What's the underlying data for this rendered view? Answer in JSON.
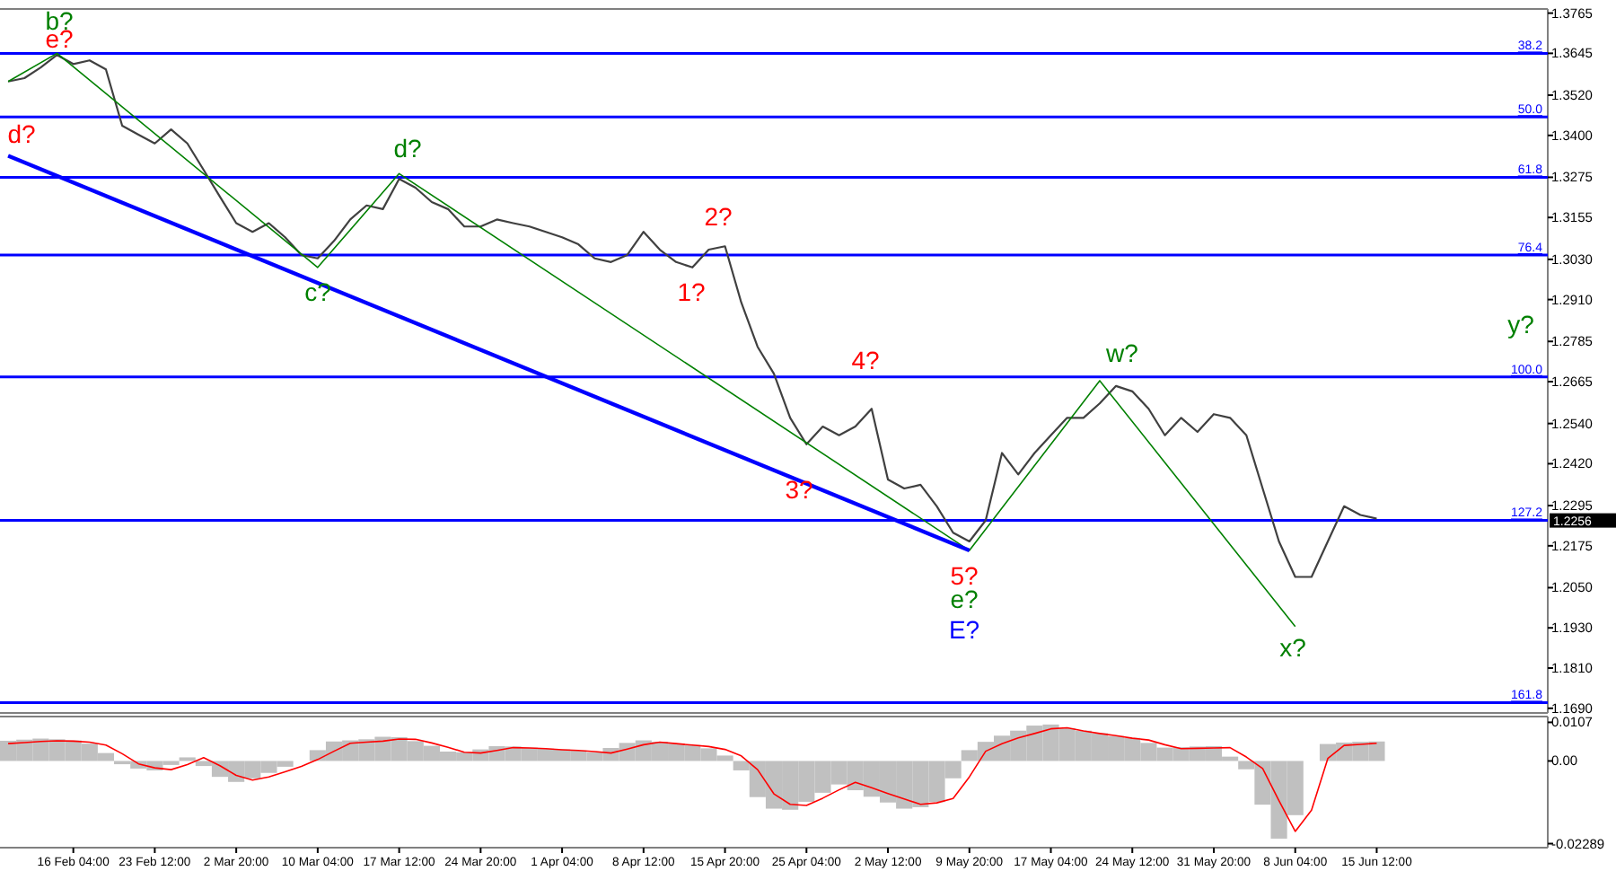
{
  "chart_data": [
    {
      "type": "line",
      "ylim": [
        1.1676,
        1.3772
      ],
      "tick_labels": "y",
      "categories": [
        null,
        null,
        null,
        null,
        null,
        null,
        null,
        null,
        null,
        null,
        null,
        null,
        null,
        null,
        null,
        null,
        null,
        null,
        null,
        null,
        null,
        null,
        null,
        null,
        null,
        null,
        null,
        null,
        null,
        null,
        null,
        null,
        null,
        null,
        null,
        null,
        null,
        null,
        null,
        null,
        null,
        null,
        null,
        null,
        null,
        null,
        null,
        null,
        null,
        null,
        null,
        null,
        null,
        null,
        null,
        null,
        null,
        null,
        null,
        null,
        null,
        null,
        null,
        null,
        null,
        null,
        null,
        null,
        null,
        null,
        null,
        null,
        null,
        null,
        null,
        null,
        null,
        null,
        null,
        null,
        null,
        null,
        null,
        null,
        null,
        null,
        null,
        null,
        null,
        null,
        null,
        null,
        null,
        null,
        null
      ],
      "yticks": [
        1.3765,
        1.3645,
        {
          "value": 1.352,
          "label": "1.3520"
        },
        {
          "value": 1.34,
          "label": "1.3400"
        },
        1.3275,
        1.3155,
        {
          "value": 1.303,
          "label": "1.3030"
        },
        {
          "value": 1.291,
          "label": "1.2910"
        },
        1.2785,
        1.2665,
        {
          "value": 1.254,
          "label": "1.2540"
        },
        {
          "value": 1.242,
          "label": "1.2420"
        },
        1.2295,
        1.2175,
        {
          "value": 1.205,
          "label": "1.2050"
        },
        {
          "value": 1.193,
          "label": "1.1930"
        },
        {
          "value": 1.181,
          "label": "1.1810"
        },
        {
          "value": 1.169,
          "label": "1.1690"
        }
      ],
      "series": [
        {
          "color": "#404040",
          "values": [
            1.3561,
            1.3571,
            1.3603,
            1.364,
            1.3613,
            1.3624,
            1.3597,
            1.3429,
            1.3402,
            1.3376,
            1.3418,
            1.3376,
            1.3297,
            1.3217,
            1.3138,
            1.3112,
            1.3138,
            1.3096,
            1.3043,
            1.3033,
            1.3085,
            1.3149,
            1.3191,
            1.318,
            1.327,
            1.3244,
            1.3201,
            1.318,
            1.3128,
            1.3128,
            1.3149,
            1.3138,
            1.3128,
            1.3112,
            1.3096,
            1.3075,
            1.3033,
            1.3022,
            1.3043,
            1.3112,
            1.3059,
            1.3022,
            1.3006,
            1.3059,
            1.3069,
            1.2901,
            1.2769,
            1.2689,
            1.2557,
            1.2478,
            1.2531,
            1.2505,
            1.2531,
            1.2584,
            1.2373,
            1.2346,
            1.2357,
            1.2293,
            1.2214,
            1.2188,
            1.2251,
            1.2452,
            1.2388,
            1.2452,
            1.2505,
            1.2557,
            1.2557,
            1.26,
            1.2652,
            1.2636,
            1.2584,
            1.2505,
            1.2557,
            1.2515,
            1.2568,
            1.2557,
            1.2505,
            1.2346,
            1.2188,
            1.2082,
            1.2082,
            1.2188,
            1.2293,
            1.2267,
            1.2256,
            null,
            null,
            null,
            null,
            null,
            null,
            null,
            null,
            null,
            null
          ]
        },
        {
          "color": "#008000",
          "values": [
            1.3561,
            null,
            null,
            1.3645,
            null,
            null,
            null,
            null,
            null,
            null,
            null,
            null,
            null,
            null,
            null,
            null,
            null,
            null,
            null,
            1.3006,
            null,
            null,
            null,
            null,
            1.3286,
            null,
            null,
            null,
            null,
            null,
            null,
            null,
            null,
            null,
            null,
            null,
            null,
            null,
            null,
            null,
            null,
            null,
            null,
            null,
            null,
            null,
            null,
            null,
            null,
            null,
            null,
            null,
            null,
            null,
            null,
            null,
            null,
            null,
            null,
            1.2161,
            null,
            null,
            null,
            null,
            null,
            null,
            null,
            1.2668,
            null,
            null,
            null,
            null,
            null,
            null,
            null,
            null,
            null,
            null,
            null,
            1.1934,
            null,
            null,
            null,
            null,
            null,
            null,
            null,
            null,
            null,
            null,
            null,
            null,
            null,
            null,
            null
          ]
        },
        {
          "color": "#0000ff",
          "values": [
            1.3339,
            null,
            null,
            null,
            null,
            null,
            null,
            null,
            null,
            null,
            null,
            null,
            null,
            null,
            null,
            null,
            null,
            null,
            null,
            null,
            null,
            null,
            null,
            null,
            null,
            null,
            null,
            null,
            null,
            null,
            null,
            null,
            null,
            null,
            null,
            null,
            null,
            null,
            null,
            null,
            null,
            null,
            null,
            null,
            null,
            null,
            null,
            null,
            null,
            null,
            null,
            null,
            null,
            null,
            null,
            null,
            null,
            null,
            null,
            1.2161,
            null,
            null,
            null,
            null,
            null,
            null,
            null,
            null,
            null,
            null,
            null,
            null,
            null,
            null,
            null,
            null,
            null,
            null,
            null,
            null,
            null,
            null,
            null,
            null,
            null,
            null,
            null,
            null,
            null,
            null,
            null,
            null,
            null,
            null,
            null
          ]
        }
      ],
      "ref_lines": [
        {
          "axis": "y",
          "value": 1.3645,
          "color": "#0000ff"
        },
        {
          "axis": "y",
          "value": 1.3455,
          "color": "#0000ff"
        },
        {
          "axis": "y",
          "value": 1.3275,
          "color": "#0000ff"
        },
        {
          "axis": "y",
          "value": 1.3043,
          "color": "#0000ff"
        },
        {
          "axis": "y",
          "value": 1.2679,
          "color": "#0000ff"
        },
        {
          "axis": "y",
          "value": 1.2251,
          "color": "#0000ff"
        },
        {
          "axis": "y",
          "value": 1.1707,
          "color": "#0000ff"
        }
      ],
      "annotations": [
        "b?",
        "e?",
        "d?",
        "c?",
        "d?",
        "1?",
        "2?",
        "3?",
        "4?",
        "5?",
        "e?",
        "E?",
        "w?",
        "x?",
        "y?",
        "38.2",
        "50.0",
        "61.8",
        "76.4",
        "100.0",
        "127.2",
        "161.8",
        "1.2256"
      ]
    },
    {
      "type": "bar",
      "ylim": [
        -0.024,
        0.0118
      ],
      "yticks": [
        0.0107,
        {
          "value": 0,
          "label": "0.00"
        },
        -0.02289
      ],
      "categories": [
        null,
        null,
        null,
        null,
        "16 Feb 04:00",
        null,
        null,
        null,
        null,
        "23 Feb 12:00",
        null,
        null,
        null,
        null,
        "2 Mar 20:00",
        null,
        null,
        null,
        null,
        "10 Mar 04:00",
        null,
        null,
        null,
        null,
        "17 Mar 12:00",
        null,
        null,
        null,
        null,
        "24 Mar 20:00",
        null,
        null,
        null,
        null,
        "1 Apr 04:00",
        null,
        null,
        null,
        null,
        "8 Apr 12:00",
        null,
        null,
        null,
        null,
        "15 Apr 20:00",
        null,
        null,
        null,
        null,
        "25 Apr 04:00",
        null,
        null,
        null,
        null,
        "2 May 12:00",
        null,
        null,
        null,
        null,
        "9 May 20:00",
        null,
        null,
        null,
        null,
        "17 May 04:00",
        null,
        null,
        null,
        null,
        "24 May 12:00",
        null,
        null,
        null,
        null,
        "31 May 20:00",
        null,
        null,
        null,
        null,
        "8 Jun 04:00",
        null,
        null,
        null,
        null,
        "15 Jun 12:00",
        null,
        null,
        null,
        null,
        null,
        null,
        null,
        null,
        null,
        null
      ],
      "series": [
        {
          "color": "#c0c0c0",
          "values": [
            0.0056,
            0.0059,
            0.0062,
            0.006,
            0.0057,
            0.0048,
            0.0022,
            -0.0009,
            -0.0021,
            -0.0026,
            -0.0011,
            0.001,
            -0.0014,
            -0.0044,
            -0.0058,
            -0.0048,
            -0.0033,
            -0.0016,
            null,
            0.003,
            0.0054,
            0.0057,
            0.006,
            0.0067,
            0.0066,
            0.0055,
            0.0042,
            0.0026,
            0.0024,
            0.0032,
            0.0041,
            0.004,
            0.0037,
            0.0034,
            0.0032,
            0.0029,
            0.0024,
            0.0036,
            0.005,
            0.0057,
            0.0053,
            0.0048,
            0.0044,
            0.0035,
            0.0015,
            -0.0026,
            -0.01,
            -0.0132,
            -0.0135,
            -0.0113,
            -0.0088,
            -0.0065,
            -0.0081,
            -0.0099,
            -0.0115,
            -0.0132,
            -0.0128,
            -0.0114,
            -0.0048,
            0.003,
            0.0053,
            0.007,
            0.0084,
            0.0098,
            0.0101,
            0.0091,
            0.0084,
            0.0077,
            0.0069,
            0.0064,
            0.005,
            0.0037,
            0.0038,
            0.004,
            0.0041,
            0.0012,
            -0.0023,
            -0.0121,
            -0.0215,
            -0.015,
            null,
            0.0047,
            0.0051,
            0.0053,
            0.0054,
            null,
            null,
            null,
            null,
            null,
            null,
            null,
            null,
            null,
            null
          ]
        },
        {
          "type": "line",
          "color": "#ff0000",
          "values": [
            0.0048,
            0.0051,
            0.0054,
            0.0056,
            0.0055,
            0.0052,
            0.0044,
            0.002,
            -0.0008,
            -0.0019,
            -0.0024,
            -0.001,
            0.0009,
            -0.0013,
            -0.004,
            -0.0053,
            -0.0044,
            -0.003,
            -0.0015,
            0.0004,
            0.0027,
            0.0049,
            0.0052,
            0.0055,
            0.0061,
            0.006,
            0.005,
            0.0038,
            0.0024,
            0.0022,
            0.0029,
            0.0037,
            0.0036,
            0.0034,
            0.0031,
            0.0029,
            0.0026,
            0.0022,
            0.0033,
            0.0045,
            0.0052,
            0.0048,
            0.0044,
            0.004,
            0.0032,
            0.0014,
            -0.0024,
            -0.0091,
            -0.012,
            -0.0123,
            -0.0103,
            -0.008,
            -0.0059,
            -0.0074,
            -0.009,
            -0.0105,
            -0.012,
            -0.0116,
            -0.0104,
            -0.0044,
            0.0027,
            0.0048,
            0.0064,
            0.0076,
            0.0089,
            0.0092,
            0.0083,
            0.0076,
            0.007,
            0.0063,
            0.0058,
            0.0045,
            0.0034,
            0.0035,
            0.0036,
            0.0037,
            0.0011,
            -0.0021,
            -0.011,
            -0.0195,
            -0.0136,
            0.0007,
            0.0043,
            0.0046,
            0.0049,
            null,
            null,
            null,
            null,
            null,
            null,
            null,
            null,
            null,
            null
          ]
        }
      ]
    }
  ]
}
